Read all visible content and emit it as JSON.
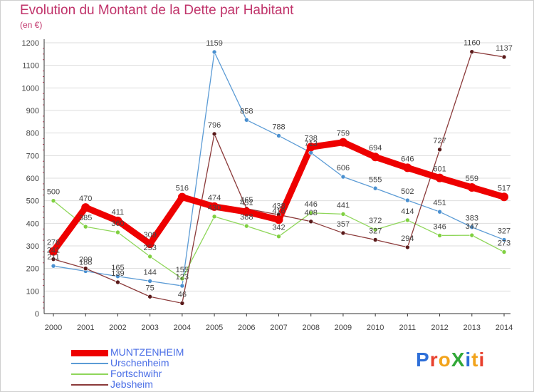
{
  "title": "Evolution du Montant de la Dette par Habitant",
  "subtitle": "(en €)",
  "logo": {
    "text": "ProXiti",
    "letter_colors": [
      "#2e6fd8",
      "#e8402d",
      "#f2a31b",
      "#31a838",
      "#2e6fd8",
      "#f2a31b",
      "#e8402d"
    ]
  },
  "chart_data": {
    "type": "line",
    "categories": [
      "2000",
      "2001",
      "2002",
      "2003",
      "2004",
      "2005",
      "2006",
      "2007",
      "2008",
      "2009",
      "2010",
      "2011",
      "2012",
      "2013",
      "2014"
    ],
    "ylim": [
      0,
      1200
    ],
    "yticks": [
      0,
      100,
      200,
      300,
      400,
      500,
      600,
      700,
      800,
      900,
      1000,
      1100,
      1200
    ],
    "grid": "horizontal",
    "legend_position": "bottom-left",
    "series": [
      {
        "name": "Urschenheim",
        "color": "#5b9bd5",
        "line_width": 1.3,
        "marker_fill": "#4a90d0",
        "values": [
          211,
          188,
          165,
          144,
          123,
          1159,
          858,
          788,
          713,
          606,
          555,
          502,
          451,
          383,
          327
        ],
        "labels": [
          "211",
          "188",
          "165",
          "144",
          "123",
          "1159",
          "858",
          "788",
          "713",
          "606",
          "555",
          "502",
          "451",
          "383",
          "327"
        ]
      },
      {
        "name": "Fortschwihr",
        "color": "#8fd65a",
        "line_width": 1.3,
        "marker_fill": "#7fd040",
        "values": [
          500,
          385,
          360,
          253,
          155,
          430,
          388,
          342,
          446,
          441,
          372,
          414,
          346,
          347,
          273
        ],
        "labels": [
          "500",
          "385",
          "360",
          "253",
          "155",
          "430",
          "388",
          "342",
          "446",
          "441",
          "372",
          "414",
          "346",
          "347",
          "273"
        ]
      },
      {
        "name": "Jebsheim",
        "color": "#8b3a3a",
        "line_width": 1.3,
        "marker_fill": "#5a1a1a",
        "values": [
          241,
          200,
          139,
          75,
          46,
          796,
          465,
          438,
          408,
          357,
          327,
          294,
          727,
          1160,
          1137
        ],
        "labels": [
          "241",
          "200",
          "139",
          "75",
          "46",
          "796",
          "465",
          "438",
          "408",
          "357",
          "327",
          "294",
          "727",
          "1160",
          "1137"
        ]
      },
      {
        "name": "MUNTZENHEIM",
        "color": "#ee0000",
        "line_width": 9,
        "marker_fill": "#ee0000",
        "values": [
          276,
          470,
          411,
          309,
          516,
          474,
          451,
          416,
          738,
          759,
          694,
          646,
          601,
          559,
          517
        ],
        "labels": [
          "276",
          "470",
          "411",
          "309",
          "516",
          "474",
          "451",
          "416",
          "738",
          "759",
          "694",
          "646",
          "601",
          "559",
          "517"
        ]
      }
    ],
    "legend_order": [
      "MUNTZENHEIM",
      "Urschenheim",
      "Fortschwihr",
      "Jebsheim"
    ]
  }
}
